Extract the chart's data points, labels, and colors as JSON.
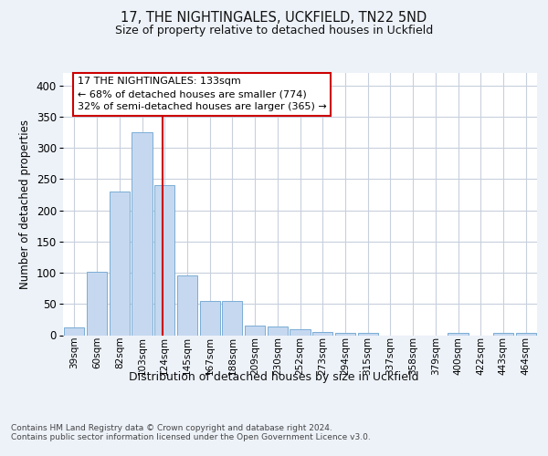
{
  "title1": "17, THE NIGHTINGALES, UCKFIELD, TN22 5ND",
  "title2": "Size of property relative to detached houses in Uckfield",
  "xlabel": "Distribution of detached houses by size in Uckfield",
  "ylabel": "Number of detached properties",
  "categories": [
    "39sqm",
    "60sqm",
    "82sqm",
    "103sqm",
    "124sqm",
    "145sqm",
    "167sqm",
    "188sqm",
    "209sqm",
    "230sqm",
    "252sqm",
    "273sqm",
    "294sqm",
    "315sqm",
    "337sqm",
    "358sqm",
    "379sqm",
    "400sqm",
    "422sqm",
    "443sqm",
    "464sqm"
  ],
  "values": [
    13,
    102,
    230,
    325,
    240,
    96,
    55,
    55,
    16,
    14,
    9,
    5,
    3,
    3,
    0,
    0,
    0,
    3,
    0,
    3,
    3
  ],
  "bar_color": "#c5d8f0",
  "bar_edge_color": "#7aadd4",
  "vline_color": "#cc0000",
  "annotation_text": "17 THE NIGHTINGALES: 133sqm\n← 68% of detached houses are smaller (774)\n32% of semi-detached houses are larger (365) →",
  "annotation_box_color": "#ffffff",
  "annotation_box_edge_color": "#cc0000",
  "ylim": [
    0,
    420
  ],
  "yticks": [
    0,
    50,
    100,
    150,
    200,
    250,
    300,
    350,
    400
  ],
  "footer": "Contains HM Land Registry data © Crown copyright and database right 2024.\nContains public sector information licensed under the Open Government Licence v3.0.",
  "bg_color": "#edf2f9",
  "plot_bg_color": "#ffffff",
  "grid_color": "#c8d0dc"
}
